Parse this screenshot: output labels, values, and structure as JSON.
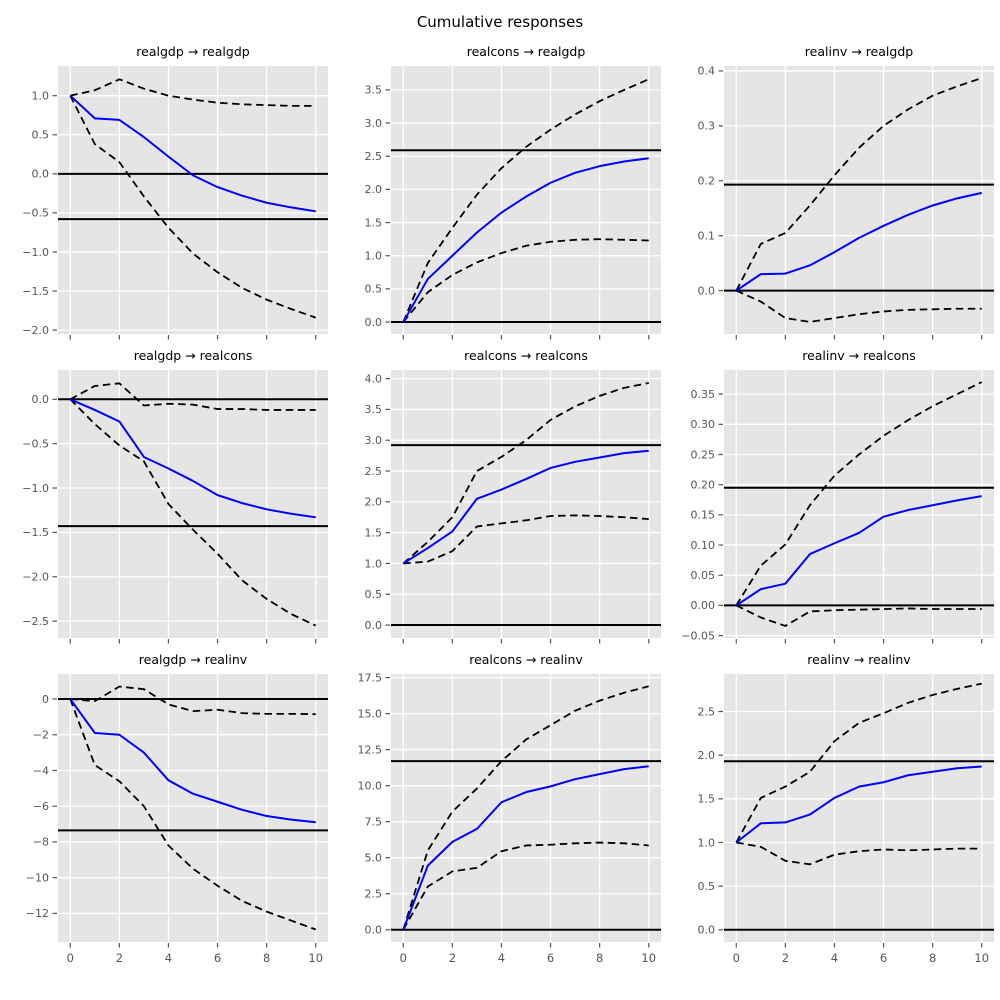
{
  "figure_title": "Cumulative responses",
  "style": {
    "figure_background": "#ffffff",
    "plot_background": "#e5e5e5",
    "grid_color": "#ffffff",
    "response_line_color": "#0000ff",
    "confidence_band_color": "#000000",
    "reference_line_color": "#000000",
    "tick_color": "#555555",
    "title_color": "#000000"
  },
  "x_axis": {
    "x": [
      0,
      1,
      2,
      3,
      4,
      5,
      6,
      7,
      8,
      9,
      10
    ],
    "xlim": [
      -0.5,
      10.5
    ],
    "tick_values": [
      0,
      2,
      4,
      6,
      8,
      10
    ],
    "tick_labels": [
      "0",
      "2",
      "4",
      "6",
      "8",
      "10"
    ]
  },
  "chart_data": [
    {
      "type": "line",
      "title": "realgdp → realgdp",
      "impulse": "realgdp",
      "response": "realgdp",
      "ylim": [
        -2.05,
        1.38
      ],
      "ytick_values": [
        1.0,
        0.5,
        0.0,
        -0.5,
        -1.0,
        -1.5,
        -2.0
      ],
      "ytick_labels": [
        "1.0",
        "0.5",
        "0.0",
        "−0.5",
        "−1.0",
        "−1.5",
        "−2.0"
      ],
      "show_x_tick_labels": false,
      "series": [
        {
          "name": "cumulative response",
          "style": "solid-blue",
          "values": [
            1.0,
            0.71,
            0.69,
            0.47,
            0.22,
            -0.02,
            -0.17,
            -0.28,
            -0.37,
            -0.43,
            -0.48
          ]
        },
        {
          "name": "upper 95% band",
          "style": "dashed-black",
          "values": [
            1.0,
            1.07,
            1.21,
            1.09,
            1.0,
            0.95,
            0.91,
            0.89,
            0.88,
            0.87,
            0.87
          ]
        },
        {
          "name": "lower 95% band",
          "style": "dashed-black",
          "values": [
            1.0,
            0.38,
            0.15,
            -0.29,
            -0.69,
            -1.02,
            -1.26,
            -1.46,
            -1.61,
            -1.73,
            -1.84
          ]
        }
      ],
      "reference_lines": {
        "zero": 0.0,
        "long_run_effect": -0.58
      }
    },
    {
      "type": "line",
      "title": "realcons → realgdp",
      "impulse": "realcons",
      "response": "realgdp",
      "ylim": [
        -0.18,
        3.86
      ],
      "ytick_values": [
        3.5,
        3.0,
        2.5,
        2.0,
        1.5,
        1.0,
        0.5,
        0.0
      ],
      "ytick_labels": [
        "3.5",
        "3.0",
        "2.5",
        "2.0",
        "1.5",
        "1.0",
        "0.5",
        "0.0"
      ],
      "show_x_tick_labels": false,
      "series": [
        {
          "name": "cumulative response",
          "style": "solid-blue",
          "values": [
            0.0,
            0.65,
            1.0,
            1.35,
            1.65,
            1.89,
            2.1,
            2.25,
            2.35,
            2.42,
            2.47
          ]
        },
        {
          "name": "upper 95% band",
          "style": "dashed-black",
          "values": [
            0.0,
            0.89,
            1.42,
            1.92,
            2.32,
            2.64,
            2.9,
            3.13,
            3.33,
            3.5,
            3.66
          ]
        },
        {
          "name": "lower 95% band",
          "style": "dashed-black",
          "values": [
            0.0,
            0.45,
            0.71,
            0.9,
            1.04,
            1.15,
            1.21,
            1.24,
            1.25,
            1.24,
            1.23
          ]
        }
      ],
      "reference_lines": {
        "zero": 0.0,
        "long_run_effect": 2.59
      }
    },
    {
      "type": "line",
      "title": "realinv → realgdp",
      "impulse": "realinv",
      "response": "realgdp",
      "ylim": [
        -0.079,
        0.409
      ],
      "ytick_values": [
        0.4,
        0.3,
        0.2,
        0.1,
        0.0
      ],
      "ytick_labels": [
        "0.4",
        "0.3",
        "0.2",
        "0.1",
        "0.0"
      ],
      "show_x_tick_labels": false,
      "series": [
        {
          "name": "cumulative response",
          "style": "solid-blue",
          "values": [
            0.0,
            0.03,
            0.031,
            0.046,
            0.07,
            0.096,
            0.118,
            0.138,
            0.155,
            0.168,
            0.178
          ]
        },
        {
          "name": "upper 95% band",
          "style": "dashed-black",
          "values": [
            0.0,
            0.085,
            0.105,
            0.155,
            0.21,
            0.26,
            0.3,
            0.33,
            0.355,
            0.372,
            0.387
          ]
        },
        {
          "name": "lower 95% band",
          "style": "dashed-black",
          "values": [
            0.0,
            -0.02,
            -0.05,
            -0.057,
            -0.05,
            -0.043,
            -0.038,
            -0.035,
            -0.034,
            -0.033,
            -0.033
          ]
        }
      ],
      "reference_lines": {
        "zero": 0.0,
        "long_run_effect": 0.193
      }
    },
    {
      "type": "line",
      "title": "realgdp → realcons",
      "impulse": "realgdp",
      "response": "realcons",
      "ylim": [
        -2.69,
        0.33
      ],
      "ytick_values": [
        0.0,
        -0.5,
        -1.0,
        -1.5,
        -2.0,
        -2.5
      ],
      "ytick_labels": [
        "0.0",
        "−0.5",
        "−1.0",
        "−1.5",
        "−2.0",
        "−2.5"
      ],
      "show_x_tick_labels": false,
      "series": [
        {
          "name": "cumulative response",
          "style": "solid-blue",
          "values": [
            0.0,
            -0.12,
            -0.25,
            -0.65,
            -0.78,
            -0.92,
            -1.08,
            -1.17,
            -1.24,
            -1.29,
            -1.33
          ]
        },
        {
          "name": "upper 95% band",
          "style": "dashed-black",
          "values": [
            0.0,
            0.15,
            0.18,
            -0.07,
            -0.05,
            -0.06,
            -0.11,
            -0.11,
            -0.12,
            -0.12,
            -0.12
          ]
        },
        {
          "name": "lower 95% band",
          "style": "dashed-black",
          "values": [
            0.0,
            -0.28,
            -0.52,
            -0.7,
            -1.18,
            -1.47,
            -1.74,
            -2.04,
            -2.25,
            -2.42,
            -2.55
          ]
        }
      ],
      "reference_lines": {
        "zero": 0.0,
        "long_run_effect": -1.43
      }
    },
    {
      "type": "line",
      "title": "realcons → realcons",
      "impulse": "realcons",
      "response": "realcons",
      "ylim": [
        -0.21,
        4.14
      ],
      "ytick_values": [
        4.0,
        3.5,
        3.0,
        2.5,
        2.0,
        1.5,
        1.0,
        0.5,
        0.0
      ],
      "ytick_labels": [
        "4.0",
        "3.5",
        "3.0",
        "2.5",
        "2.0",
        "1.5",
        "1.0",
        "0.5",
        "0.0"
      ],
      "show_x_tick_labels": false,
      "series": [
        {
          "name": "cumulative response",
          "style": "solid-blue",
          "values": [
            1.0,
            1.25,
            1.52,
            2.05,
            2.2,
            2.37,
            2.55,
            2.65,
            2.72,
            2.79,
            2.83
          ]
        },
        {
          "name": "upper 95% band",
          "style": "dashed-black",
          "values": [
            1.0,
            1.35,
            1.75,
            2.5,
            2.73,
            3.0,
            3.33,
            3.55,
            3.72,
            3.85,
            3.93
          ]
        },
        {
          "name": "lower 95% band",
          "style": "dashed-black",
          "values": [
            1.0,
            1.03,
            1.2,
            1.6,
            1.65,
            1.7,
            1.77,
            1.78,
            1.77,
            1.75,
            1.72
          ]
        }
      ],
      "reference_lines": {
        "zero": 0.0,
        "long_run_effect": 2.92
      }
    },
    {
      "type": "line",
      "title": "realinv → realcons",
      "impulse": "realinv",
      "response": "realcons",
      "ylim": [
        -0.054,
        0.39
      ],
      "ytick_values": [
        0.35,
        0.3,
        0.25,
        0.2,
        0.15,
        0.1,
        0.05,
        0.0,
        -0.05
      ],
      "ytick_labels": [
        "0.35",
        "0.30",
        "0.25",
        "0.20",
        "0.15",
        "0.10",
        "0.05",
        "0.00",
        "−0.05"
      ],
      "show_x_tick_labels": false,
      "series": [
        {
          "name": "cumulative response",
          "style": "solid-blue",
          "values": [
            0.0,
            0.027,
            0.036,
            0.085,
            0.103,
            0.12,
            0.147,
            0.158,
            0.166,
            0.174,
            0.181
          ]
        },
        {
          "name": "upper 95% band",
          "style": "dashed-black",
          "values": [
            0.0,
            0.066,
            0.101,
            0.166,
            0.215,
            0.25,
            0.281,
            0.307,
            0.33,
            0.35,
            0.37
          ]
        },
        {
          "name": "lower 95% band",
          "style": "dashed-black",
          "values": [
            0.0,
            -0.02,
            -0.034,
            -0.01,
            -0.008,
            -0.007,
            -0.006,
            -0.005,
            -0.006,
            -0.006,
            -0.006
          ]
        }
      ],
      "reference_lines": {
        "zero": 0.0,
        "long_run_effect": 0.195
      }
    },
    {
      "type": "line",
      "title": "realgdp → realinv",
      "impulse": "realgdp",
      "response": "realinv",
      "ylim": [
        -13.6,
        1.4
      ],
      "ytick_values": [
        0,
        -2,
        -4,
        -6,
        -8,
        -10,
        -12
      ],
      "ytick_labels": [
        "0",
        "−2",
        "−4",
        "−6",
        "−8",
        "−10",
        "−12"
      ],
      "show_x_tick_labels": true,
      "series": [
        {
          "name": "cumulative response",
          "style": "solid-blue",
          "values": [
            0.0,
            -1.9,
            -2.0,
            -3.0,
            -4.55,
            -5.3,
            -5.75,
            -6.2,
            -6.55,
            -6.75,
            -6.9
          ]
        },
        {
          "name": "upper 95% band",
          "style": "dashed-black",
          "values": [
            0.0,
            -0.12,
            0.7,
            0.55,
            -0.3,
            -0.68,
            -0.6,
            -0.79,
            -0.83,
            -0.83,
            -0.85
          ]
        },
        {
          "name": "lower 95% band",
          "style": "dashed-black",
          "values": [
            0.0,
            -3.7,
            -4.6,
            -6.0,
            -8.2,
            -9.5,
            -10.45,
            -11.3,
            -11.9,
            -12.4,
            -12.9
          ]
        }
      ],
      "reference_lines": {
        "zero": 0.0,
        "long_run_effect": -7.35
      }
    },
    {
      "type": "line",
      "title": "realcons → realinv",
      "impulse": "realcons",
      "response": "realinv",
      "ylim": [
        -0.85,
        17.75
      ],
      "ytick_values": [
        17.5,
        15.0,
        12.5,
        10.0,
        7.5,
        5.0,
        2.5,
        0.0
      ],
      "ytick_labels": [
        "17.5",
        "15.0",
        "12.5",
        "10.0",
        "7.5",
        "5.0",
        "2.5",
        "0.0"
      ],
      "show_x_tick_labels": true,
      "series": [
        {
          "name": "cumulative response",
          "style": "solid-blue",
          "values": [
            0.0,
            4.45,
            6.1,
            7.0,
            8.85,
            9.55,
            9.95,
            10.45,
            10.8,
            11.15,
            11.35
          ]
        },
        {
          "name": "upper 95% band",
          "style": "dashed-black",
          "values": [
            0.0,
            5.5,
            8.2,
            9.8,
            11.7,
            13.2,
            14.2,
            15.2,
            15.9,
            16.45,
            16.9
          ]
        },
        {
          "name": "lower 95% band",
          "style": "dashed-black",
          "values": [
            0.0,
            3.0,
            4.05,
            4.3,
            5.45,
            5.85,
            5.9,
            6.0,
            6.05,
            6.0,
            5.85
          ]
        }
      ],
      "reference_lines": {
        "zero": 0.0,
        "long_run_effect": 11.7
      }
    },
    {
      "type": "line",
      "title": "realinv → realinv",
      "impulse": "realinv",
      "response": "realinv",
      "ylim": [
        -0.14,
        2.93
      ],
      "ytick_values": [
        2.5,
        2.0,
        1.5,
        1.0,
        0.5,
        0.0
      ],
      "ytick_labels": [
        "2.5",
        "2.0",
        "1.5",
        "1.0",
        "0.5",
        "0.0"
      ],
      "show_x_tick_labels": true,
      "series": [
        {
          "name": "cumulative response",
          "style": "solid-blue",
          "values": [
            1.0,
            1.22,
            1.23,
            1.32,
            1.51,
            1.64,
            1.69,
            1.77,
            1.81,
            1.85,
            1.87
          ]
        },
        {
          "name": "upper 95% band",
          "style": "dashed-black",
          "values": [
            1.0,
            1.51,
            1.64,
            1.81,
            2.16,
            2.37,
            2.48,
            2.6,
            2.69,
            2.76,
            2.82
          ]
        },
        {
          "name": "lower 95% band",
          "style": "dashed-black",
          "values": [
            1.0,
            0.95,
            0.79,
            0.75,
            0.86,
            0.9,
            0.92,
            0.91,
            0.92,
            0.93,
            0.93
          ]
        }
      ],
      "reference_lines": {
        "zero": 0.0,
        "long_run_effect": 1.93
      }
    }
  ]
}
